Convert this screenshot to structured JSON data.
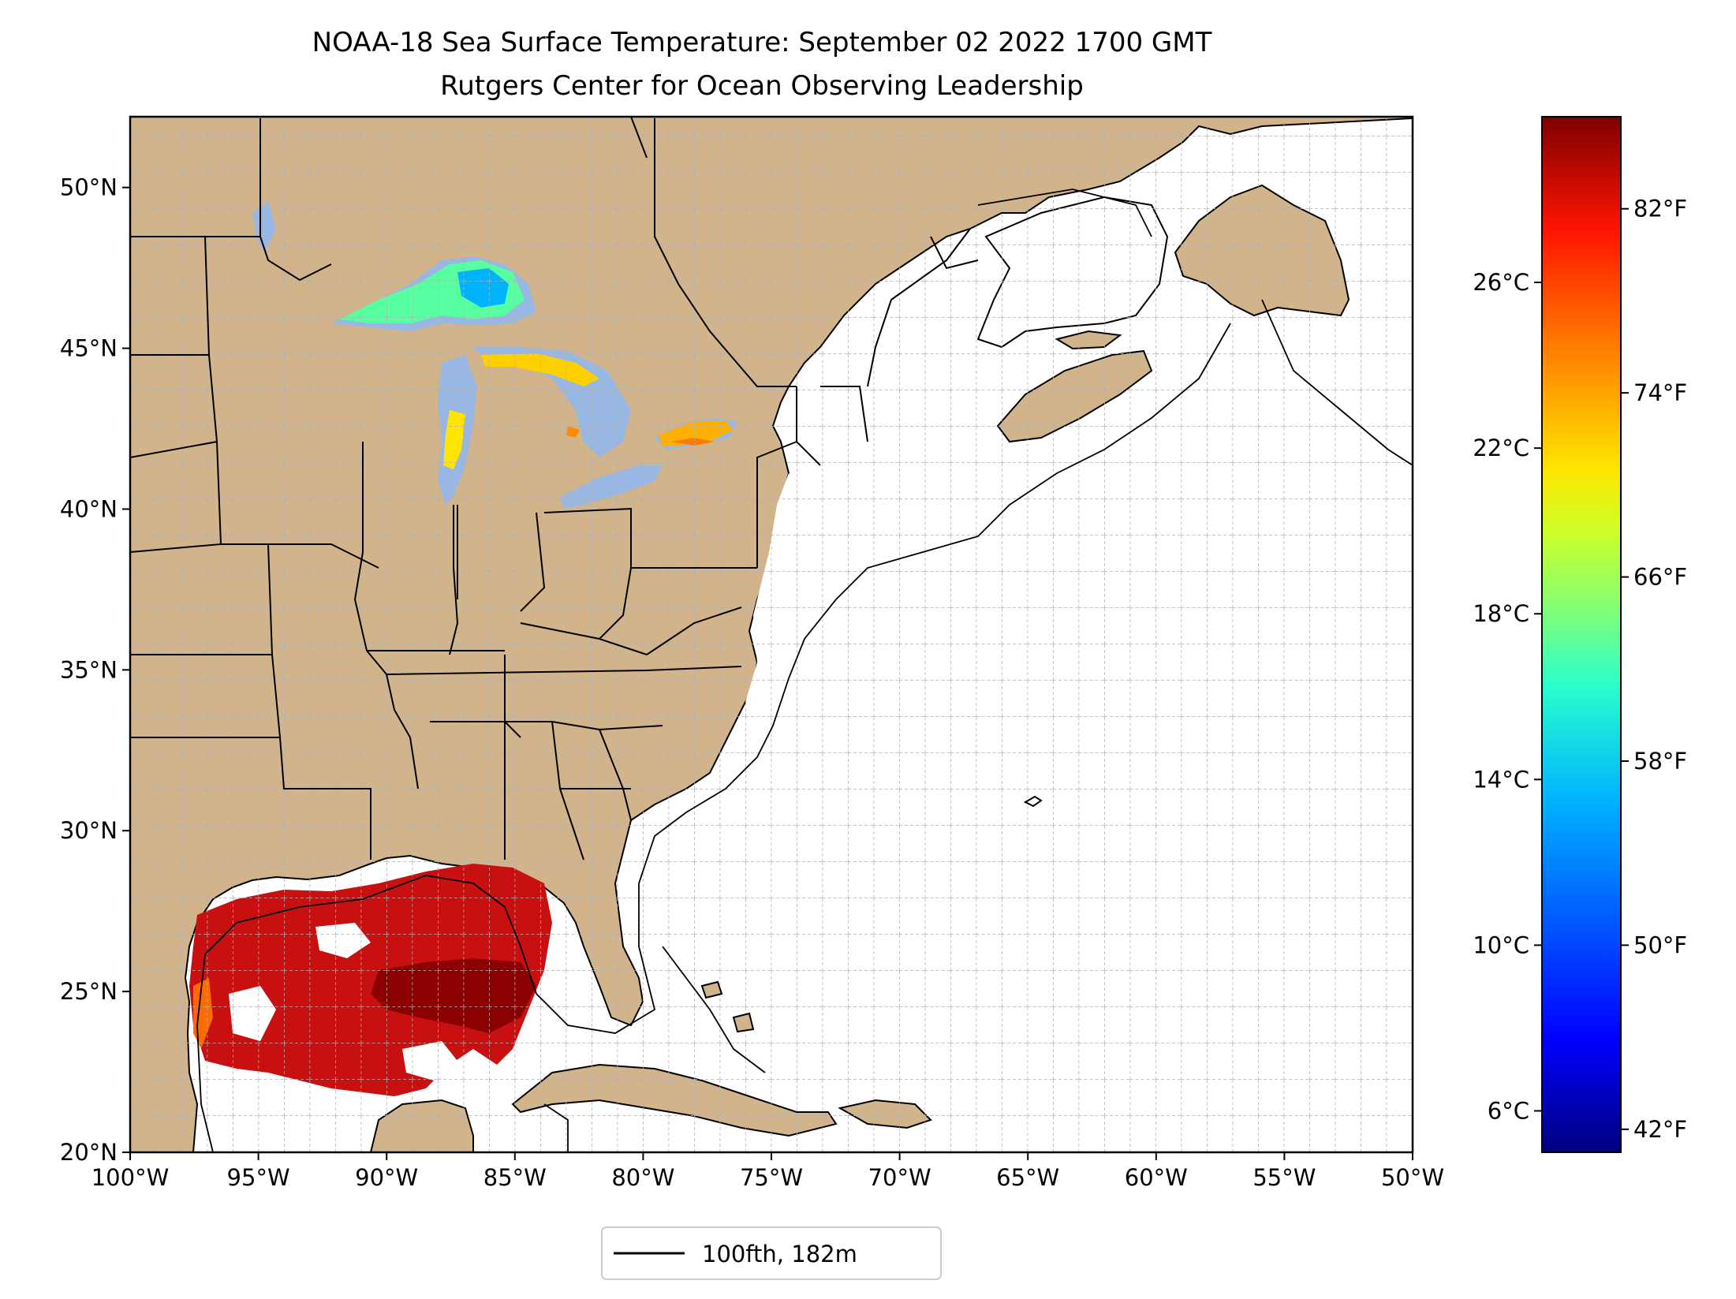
{
  "figure": {
    "title_line1": "NOAA-18 Sea Surface Temperature: September 02 2022 1700 GMT",
    "title_line2": "Rutgers Center for Ocean Observing Leadership"
  },
  "map": {
    "lon_range": [
      -100,
      -50
    ],
    "lat_range": [
      20,
      52.2
    ],
    "land_color": "#d2b48c",
    "lake_color": "#98b7e3",
    "ocean_color": "#ffffff",
    "grid_style": "dashed",
    "x_ticks": [
      "100°W",
      "95°W",
      "90°W",
      "85°W",
      "80°W",
      "75°W",
      "70°W",
      "65°W",
      "60°W",
      "55°W",
      "50°W"
    ],
    "y_ticks": [
      "20°N",
      "25°N",
      "30°N",
      "35°N",
      "40°N",
      "45°N",
      "50°N"
    ]
  },
  "legend": {
    "label": "100fth, 182m",
    "line_color": "#000000"
  },
  "colorbar": {
    "colormap": "jet",
    "range_celsius": [
      5,
      30
    ],
    "celsius_ticks": [
      "6°C",
      "10°C",
      "14°C",
      "18°C",
      "22°C",
      "26°C"
    ],
    "fahrenheit_ticks": [
      "42°F",
      "50°F",
      "58°F",
      "66°F",
      "74°F",
      "82°F"
    ],
    "colors": {
      "c0": "#00007f",
      "c1": "#0000ff",
      "c2": "#00b3ff",
      "c3": "#29ffce",
      "c4": "#7dff7a",
      "c5": "#ceff29",
      "c6": "#ffe500",
      "c7": "#ff7b00",
      "c8": "#ff1400",
      "c9": "#7f0000"
    }
  }
}
